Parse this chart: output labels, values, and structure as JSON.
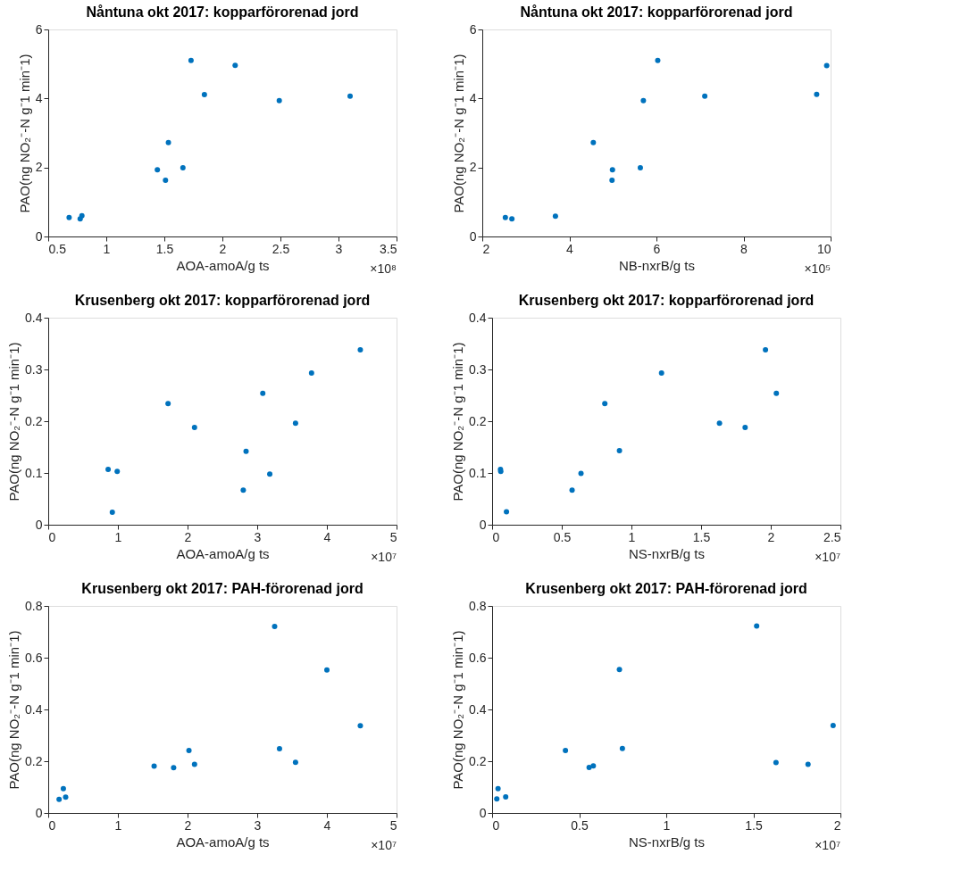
{
  "chart_data": [
    {
      "type": "scatter",
      "title": "Nåntuna okt 2017: kopparförorenad jord",
      "xlabel": "AOA-amoA/g ts",
      "ylabel": "PAO(ng NO₂⁻-N g⁻1 min⁻1)",
      "marker": "circle",
      "annotations": [
        "×10⁸"
      ],
      "xlim": [
        0.5,
        3.5
      ],
      "xticks": [
        0.5,
        1,
        1.5,
        2,
        2.5,
        3,
        3.5
      ],
      "ylim": [
        0,
        6
      ],
      "yticks": [
        0,
        2,
        4,
        6
      ],
      "x": [
        0.68,
        0.775,
        0.79,
        1.44,
        1.51,
        1.535,
        1.66,
        1.73,
        1.845,
        2.11,
        2.49,
        3.1
      ],
      "series": [
        {
          "color": "#0072bd",
          "values": [
            0.55,
            0.51,
            0.6,
            1.93,
            1.63,
            2.72,
            1.99,
            5.1,
            4.11,
            4.96,
            3.94,
            4.07
          ]
        }
      ]
    },
    {
      "type": "scatter",
      "title": "Nåntuna okt 2017: kopparförorenad jord",
      "xlabel": "NB-nxrB/g ts",
      "ylabel": "PAO(ng NO₂⁻-N g⁻1 min⁻1)",
      "marker": "circle",
      "annotations": [
        "×10⁵"
      ],
      "xlim": [
        2,
        10
      ],
      "xticks": [
        2,
        4,
        6,
        8,
        10
      ],
      "ylim": [
        0,
        6
      ],
      "yticks": [
        0,
        2,
        4,
        6
      ],
      "x": [
        2.53,
        2.68,
        3.68,
        4.55,
        4.99,
        4.98,
        5.63,
        5.7,
        6.03,
        7.11,
        9.68,
        9.91
      ],
      "series": [
        {
          "color": "#0072bd",
          "values": [
            0.55,
            0.51,
            0.59,
            2.72,
            1.93,
            1.63,
            1.99,
            3.94,
            5.1,
            4.07,
            4.12,
            4.95
          ]
        }
      ]
    },
    {
      "type": "scatter",
      "title": "Krusenberg okt 2017: kopparförorenad jord",
      "xlabel": "AOA-amoA/g ts",
      "ylabel": "PAO(ng NO₂⁻-N g⁻1 min⁻1)",
      "marker": "circle",
      "annotations": [
        "×10⁷"
      ],
      "xlim": [
        0,
        5
      ],
      "xticks": [
        0,
        1,
        2,
        3,
        4,
        5
      ],
      "ylim": [
        0,
        0.4
      ],
      "yticks": [
        0,
        0.1,
        0.2,
        0.3,
        0.4
      ],
      "x": [
        0.86,
        0.99,
        0.92,
        1.72,
        2.1,
        2.8,
        2.84,
        3.08,
        3.18,
        3.55,
        3.78,
        4.48
      ],
      "series": [
        {
          "color": "#0072bd",
          "values": [
            0.107,
            0.103,
            0.024,
            0.234,
            0.188,
            0.067,
            0.142,
            0.254,
            0.098,
            0.196,
            0.293,
            0.338
          ]
        }
      ]
    },
    {
      "type": "scatter",
      "title": "Krusenberg okt 2017: kopparförorenad jord",
      "xlabel": "NS-nxrB/g ts",
      "ylabel": "PAO(ng NO₂⁻-N g⁻1 min⁻1)",
      "marker": "circle",
      "annotations": [
        "×10⁷"
      ],
      "xlim": [
        0,
        2.5
      ],
      "xticks": [
        0,
        0.5,
        1,
        1.5,
        2,
        2.5
      ],
      "ylim": [
        0,
        0.4
      ],
      "yticks": [
        0,
        0.1,
        0.2,
        0.3,
        0.4
      ],
      "x": [
        0.06,
        0.062,
        0.103,
        0.574,
        0.638,
        0.809,
        0.914,
        1.216,
        1.632,
        1.816,
        1.962,
        2.04
      ],
      "series": [
        {
          "color": "#0072bd",
          "values": [
            0.107,
            0.103,
            0.025,
            0.067,
            0.099,
            0.234,
            0.143,
            0.293,
            0.196,
            0.188,
            0.338,
            0.254
          ]
        }
      ]
    },
    {
      "type": "scatter",
      "title": "Krusenberg okt 2017: PAH-förorenad jord",
      "xlabel": "AOA-amoA/g ts",
      "ylabel": "PAO(ng NO₂⁻-N g⁻1 min⁻1)",
      "marker": "circle",
      "annotations": [
        "×10⁷"
      ],
      "xlim": [
        0,
        5
      ],
      "xticks": [
        0,
        1,
        2,
        3,
        4,
        5
      ],
      "ylim": [
        0,
        0.8
      ],
      "yticks": [
        0,
        0.2,
        0.4,
        0.6,
        0.8
      ],
      "x": [
        0.156,
        0.217,
        0.25,
        1.52,
        1.8,
        2.02,
        2.1,
        3.25,
        3.32,
        3.55,
        4.0,
        4.48
      ],
      "series": [
        {
          "color": "#0072bd",
          "values": [
            0.053,
            0.094,
            0.061,
            0.181,
            0.175,
            0.241,
            0.188,
            0.721,
            0.248,
            0.196,
            0.553,
            0.337
          ]
        }
      ]
    },
    {
      "type": "scatter",
      "title": "Krusenberg okt 2017: PAH-förorenad jord",
      "xlabel": "NS-nxrB/g ts",
      "ylabel": "PAO(ng NO₂⁻-N g⁻1 min⁻1)",
      "marker": "circle",
      "annotations": [
        "×10⁷"
      ],
      "xlim": [
        0,
        2
      ],
      "xticks": [
        0,
        0.5,
        1,
        1.5,
        2
      ],
      "ylim": [
        0,
        0.8
      ],
      "yticks": [
        0,
        0.2,
        0.4,
        0.6,
        0.8
      ],
      "x": [
        0.027,
        0.034,
        0.078,
        0.421,
        0.557,
        0.581,
        0.731,
        0.748,
        1.519,
        1.63,
        1.814,
        1.958
      ],
      "series": [
        {
          "color": "#0072bd",
          "values": [
            0.054,
            0.094,
            0.062,
            0.241,
            0.176,
            0.182,
            0.554,
            0.249,
            0.722,
            0.195,
            0.188,
            0.338
          ]
        }
      ]
    }
  ]
}
